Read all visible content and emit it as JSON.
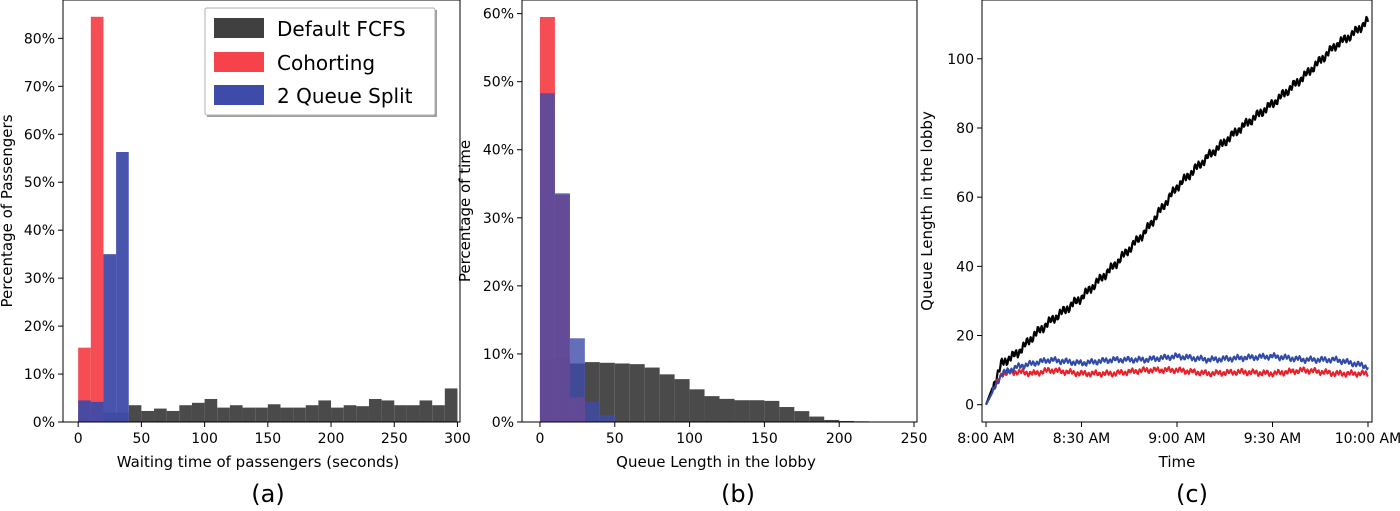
{
  "colors": {
    "fcfs": "#404040",
    "cohorting": "#f5424b",
    "split": "#3f4ba8",
    "line_fcfs": "#000000",
    "line_cohort": "#e8202a",
    "line_split": "#2f4aa8"
  },
  "legend": [
    "Default FCFS",
    "Cohorting",
    "2 Queue Split"
  ],
  "chart_data": [
    {
      "type": "bar",
      "panel_label": "(a)",
      "xlabel": "Waiting time of passengers (seconds)",
      "ylabel": "Percentage of Passengers",
      "xlim": [
        -12,
        302
      ],
      "ylim": [
        0,
        88
      ],
      "xticks": [
        0,
        50,
        100,
        150,
        200,
        250,
        300
      ],
      "yticks": [
        0,
        10,
        20,
        30,
        40,
        50,
        60,
        70,
        80
      ],
      "ytick_labels": [
        "0%",
        "10%",
        "20%",
        "30%",
        "40%",
        "50%",
        "60%",
        "70%",
        "80%"
      ],
      "legend_position": "top-right",
      "series": [
        {
          "name": "Default FCFS",
          "bin_start": 0,
          "bin_width": 10,
          "opacity": 0.95,
          "values": [
            2.5,
            2.2,
            2.0,
            2.0,
            3.5,
            2.3,
            2.8,
            2.3,
            3.5,
            4.0,
            4.8,
            3.0,
            3.5,
            3.0,
            3.0,
            3.7,
            3.0,
            3.0,
            3.5,
            4.5,
            3.0,
            3.5,
            3.3,
            4.8,
            4.5,
            3.5,
            3.5,
            4.5,
            3.5,
            7.0
          ]
        },
        {
          "name": "Cohorting",
          "bin_start": 0,
          "bin_width": 10,
          "opacity": 0.95,
          "values": [
            15.5,
            84.5
          ]
        },
        {
          "name": "2 Queue Split",
          "bin_start": 0,
          "bin_width": 10,
          "opacity": 0.95,
          "values": [
            4.5,
            4.2,
            35.0,
            56.3
          ]
        }
      ]
    },
    {
      "type": "bar",
      "panel_label": "(b)",
      "xlabel": "Queue Length in the lobby",
      "ylabel": "Percentage of time",
      "xlim": [
        -12,
        252
      ],
      "ylim": [
        0,
        62
      ],
      "xticks": [
        0,
        50,
        100,
        150,
        200,
        250
      ],
      "yticks": [
        0,
        10,
        20,
        30,
        40,
        50,
        60
      ],
      "ytick_labels": [
        "0%",
        "10%",
        "20%",
        "30%",
        "40%",
        "50%",
        "60%"
      ],
      "series": [
        {
          "name": "Default FCFS",
          "bin_start": 0,
          "bin_width": 10,
          "opacity": 0.95,
          "values": [
            9.2,
            9.4,
            8.6,
            8.8,
            8.7,
            8.6,
            8.5,
            8.0,
            7.0,
            6.3,
            4.8,
            3.8,
            3.4,
            3.2,
            3.2,
            3.1,
            2.2,
            1.6,
            0.8,
            0.3,
            0.15,
            0.1,
            0.05,
            0.03,
            0.02
          ]
        },
        {
          "name": "Cohorting",
          "bin_start": 0,
          "bin_width": 10,
          "opacity": 0.95,
          "values": [
            59.5,
            33.4,
            3.6
          ]
        },
        {
          "name": "2 Queue Split",
          "bin_start": 0,
          "bin_width": 10,
          "opacity": 0.8,
          "values": [
            48.3,
            33.6,
            12.3,
            3.0,
            1.0
          ]
        }
      ]
    },
    {
      "type": "line",
      "panel_label": "(c)",
      "xlabel": "Time",
      "ylabel": "Queue Length in the lobby",
      "xlim": [
        "8:00 AM",
        "10:00 AM"
      ],
      "ylim": [
        -5,
        117
      ],
      "xtick_labels": [
        "8:00 AM",
        "8:30 AM",
        "9:00 AM",
        "9:30 AM",
        "10:00 AM"
      ],
      "yticks": [
        0,
        20,
        40,
        60,
        80,
        100
      ],
      "x_minutes_since_start": [
        0,
        5,
        10,
        15,
        20,
        30,
        40,
        50,
        60,
        70,
        80,
        90,
        100,
        110,
        115,
        120
      ],
      "series": [
        {
          "name": "Default FCFS",
          "values": [
            0,
            12,
            15,
            20,
            24,
            31,
            40,
            50,
            63,
            72,
            80,
            87,
            95,
            104,
            107,
            111
          ]
        },
        {
          "name": "Cohorting",
          "values": [
            0,
            9,
            9.5,
            9,
            10,
            9,
            9,
            10,
            10,
            9,
            9.5,
            9,
            10,
            9,
            9,
            9
          ]
        },
        {
          "name": "2 Queue Split",
          "values": [
            0,
            9,
            11,
            12,
            13,
            12,
            13,
            13,
            14,
            13,
            13.5,
            14,
            13,
            13,
            12,
            11
          ]
        }
      ]
    }
  ]
}
